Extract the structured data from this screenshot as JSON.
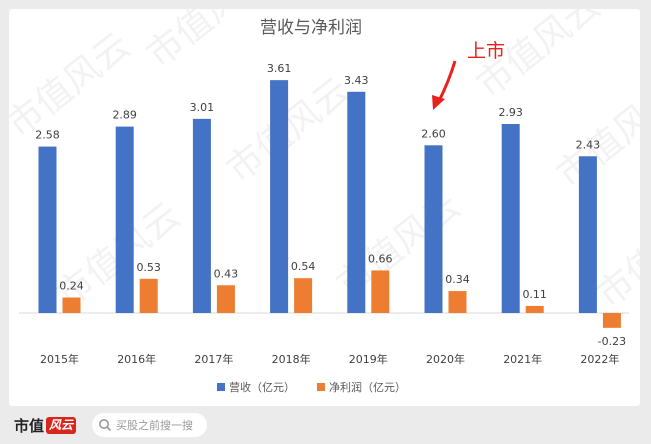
{
  "chart_data": {
    "type": "bar",
    "title": "营收与净利润",
    "categories": [
      "2015年",
      "2016年",
      "2017年",
      "2018年",
      "2019年",
      "2020年",
      "2021年",
      "2022年"
    ],
    "series": [
      {
        "name": "营收（亿元）",
        "color": "#4472c4",
        "values": [
          2.58,
          2.89,
          3.01,
          3.61,
          3.43,
          2.6,
          2.93,
          2.43
        ],
        "labels": [
          "2.58",
          "2.89",
          "3.01",
          "3.61",
          "3.43",
          "2.60",
          "2.93",
          "2.43"
        ]
      },
      {
        "name": "净利润（亿元）",
        "color": "#ed7d31",
        "values": [
          0.24,
          0.53,
          0.43,
          0.54,
          0.66,
          0.34,
          0.11,
          -0.23
        ],
        "labels": [
          "0.24",
          "0.53",
          "0.43",
          "0.54",
          "0.66",
          "0.34",
          "0.11",
          "-0.23"
        ]
      }
    ],
    "ylim": [
      -0.4,
      4.0
    ],
    "grid": false,
    "legend": "bottom",
    "annotation": {
      "text": "上市",
      "category": "2020年",
      "color": "#e8211c"
    }
  },
  "watermark": "市值风云",
  "footer": {
    "brand": "市值",
    "brand_mark": "风云",
    "search_placeholder": "买股之前搜一搜"
  }
}
